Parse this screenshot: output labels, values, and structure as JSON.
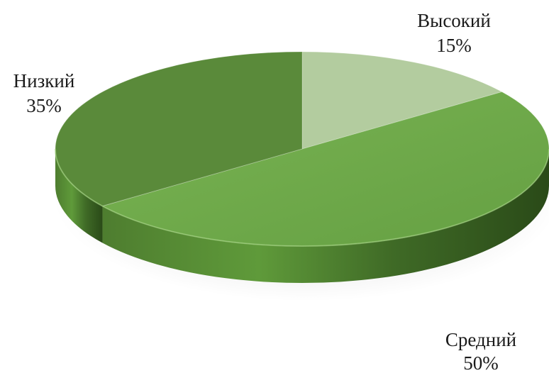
{
  "chart_data": {
    "type": "pie",
    "style": "3d",
    "title": "",
    "legend": "none",
    "slices": [
      {
        "category": "Высокий",
        "value": 15,
        "label": "15%",
        "color": "#b3cc9f"
      },
      {
        "category": "Средний",
        "value": 50,
        "label": "50%",
        "color": "#6ea84a"
      },
      {
        "category": "Низкий",
        "value": 35,
        "label": "35%",
        "color": "#5a8a3a"
      }
    ]
  }
}
